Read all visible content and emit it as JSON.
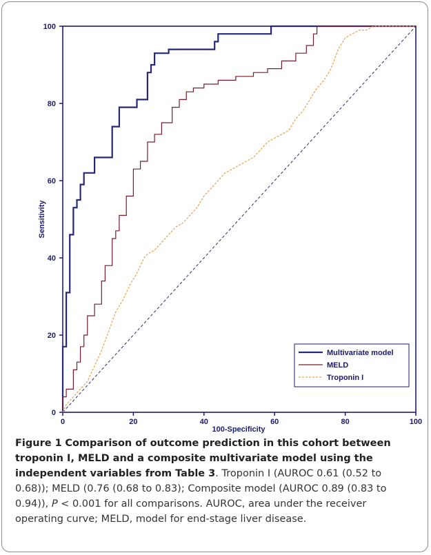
{
  "chart_data": {
    "type": "line",
    "xlabel": "100-Specificity",
    "ylabel": "Sensitivity",
    "xlim": [
      0,
      100
    ],
    "ylim": [
      0,
      100
    ],
    "xticks": [
      0,
      20,
      40,
      60,
      80,
      100
    ],
    "yticks": [
      0,
      20,
      40,
      60,
      80,
      100
    ],
    "grid": false,
    "legend_position": "bottom-right",
    "reference_line": {
      "from": [
        0,
        0
      ],
      "to": [
        100,
        100
      ],
      "style": "dashed"
    },
    "series": [
      {
        "name": "Multivariate model",
        "color": "#26277a",
        "style": "solid",
        "x": [
          0,
          0,
          1,
          1,
          2,
          2,
          3,
          3,
          4,
          4,
          5,
          5,
          6,
          6,
          7,
          7,
          9,
          9,
          11,
          11,
          14,
          14,
          16,
          16,
          18,
          18,
          21,
          21,
          24,
          24,
          25,
          25,
          26,
          26,
          27,
          27,
          30,
          30,
          34,
          34,
          38,
          38,
          43,
          43,
          44,
          44,
          46,
          46,
          59,
          59,
          100
        ],
        "y": [
          0,
          17,
          17,
          31,
          31,
          46,
          46,
          53,
          53,
          55,
          55,
          59,
          59,
          62,
          62,
          62,
          62,
          66,
          66,
          66,
          66,
          74,
          74,
          79,
          79,
          79,
          79,
          81,
          81,
          88,
          88,
          90,
          90,
          93,
          93,
          93,
          93,
          94,
          94,
          94,
          94,
          94,
          94,
          96,
          96,
          98,
          98,
          98,
          98,
          100,
          100
        ]
      },
      {
        "name": "MELD",
        "color": "#7a1a2a",
        "style": "solid",
        "x": [
          0,
          0,
          1,
          1,
          3,
          3,
          4,
          4,
          5,
          5,
          6,
          6,
          7,
          7,
          9,
          9,
          11,
          11,
          12,
          12,
          14,
          14,
          15,
          15,
          16,
          16,
          18,
          18,
          20,
          20,
          22,
          22,
          24,
          24,
          26,
          26,
          28,
          28,
          31,
          31,
          33,
          33,
          35,
          35,
          37,
          37,
          40,
          40,
          44,
          44,
          49,
          49,
          54,
          54,
          58,
          58,
          62,
          62,
          66,
          66,
          69,
          69,
          71,
          71,
          72,
          72,
          100
        ],
        "y": [
          0,
          4,
          4,
          6,
          6,
          11,
          11,
          13,
          13,
          17,
          17,
          20,
          20,
          25,
          25,
          28,
          28,
          34,
          34,
          38,
          38,
          45,
          45,
          47,
          47,
          51,
          51,
          56,
          56,
          63,
          63,
          65,
          65,
          70,
          70,
          72,
          72,
          75,
          75,
          79,
          79,
          81,
          81,
          83,
          83,
          84,
          84,
          85,
          85,
          86,
          86,
          87,
          87,
          88,
          88,
          89,
          89,
          91,
          91,
          93,
          93,
          95,
          95,
          98,
          98,
          100,
          100
        ]
      },
      {
        "name": "Troponin I",
        "color": "#e8a04a",
        "style": "dashed",
        "x": [
          0,
          1,
          3,
          5,
          7,
          9,
          11,
          13,
          15,
          17,
          19,
          21,
          23,
          24,
          26,
          28,
          30,
          32,
          34,
          36,
          38,
          40,
          42,
          44,
          46,
          48,
          50,
          52,
          54,
          56,
          58,
          60,
          62,
          64,
          66,
          68,
          70,
          72,
          74,
          76,
          78,
          80,
          82,
          84,
          86,
          88,
          100
        ],
        "y": [
          0,
          2,
          4,
          6,
          8,
          12,
          16,
          21,
          26,
          29,
          33,
          36,
          40,
          41,
          42,
          44,
          46,
          48,
          49,
          51,
          53,
          56,
          58,
          60,
          62,
          63,
          64,
          65,
          66,
          68,
          70,
          71,
          72,
          73,
          76,
          78,
          81,
          84,
          86,
          89,
          94,
          97,
          98,
          99,
          99,
          100,
          100
        ]
      }
    ]
  },
  "caption": {
    "figure_label": "Figure 1",
    "title": "Comparison of outcome prediction in this cohort between troponin I, MELD and a composite multivariate model using the independent variables from Table 3",
    "body_1": ". Troponin I (AUROC 0.61 (0.52 to 0.68)); MELD (0.76 (0.68 to 0.83); Composite model (AUROC 0.89 (0.83 to 0.94)), ",
    "p_symbol": "P",
    "body_2": " < 0.001 for all comparisons. AUROC, area under the receiver operating curve; MELD, model for end-stage liver disease."
  }
}
